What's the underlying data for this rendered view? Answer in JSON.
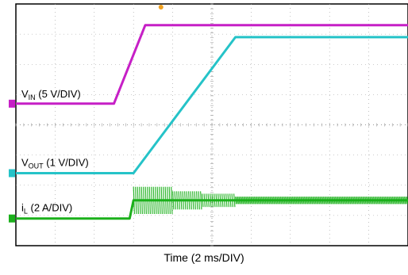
{
  "chart_data": {
    "type": "line",
    "grid": true,
    "xlabel": "Time (2 ms/DIV)",
    "x_unit": "ms",
    "x_divisions": 10,
    "y_divisions": 8,
    "xlim": [
      0,
      20
    ],
    "series": [
      {
        "name": "V_IN (5 V/DIV)",
        "label_main": "V",
        "label_sub": "IN",
        "label_rest": " (5 V/DIV)",
        "color": "#c61fc6",
        "ground_level_div": 4.7,
        "x": [
          0,
          5.0,
          6.6,
          20
        ],
        "y_div": [
          4.7,
          4.7,
          7.3,
          7.3
        ]
      },
      {
        "name": "V_OUT (1 V/DIV)",
        "label_main": "V",
        "label_sub": "OUT",
        "label_rest": " (1 V/DIV)",
        "color": "#25c3c8",
        "ground_level_div": 2.4,
        "x": [
          0,
          6.0,
          11.2,
          20
        ],
        "y_div": [
          2.4,
          2.4,
          6.9,
          6.9
        ]
      },
      {
        "name": "i_L (2 A/DIV)",
        "label_main": "i",
        "label_sub": "L",
        "label_rest": " (2 A/DIV)",
        "color": "#1bb01b",
        "ground_level_div": 0.9,
        "x": [
          0,
          5.8,
          6.0,
          20
        ],
        "y_div": [
          0.9,
          0.9,
          1.5,
          1.5
        ],
        "ripple_envelope": [
          {
            "x0": 6.0,
            "x1": 8.0,
            "amp_div": 0.45
          },
          {
            "x0": 8.0,
            "x1": 9.5,
            "amp_div": 0.3
          },
          {
            "x0": 9.5,
            "x1": 11.2,
            "amp_div": 0.22
          },
          {
            "x0": 11.2,
            "x1": 20,
            "amp_div": 0.12
          }
        ]
      }
    ]
  }
}
